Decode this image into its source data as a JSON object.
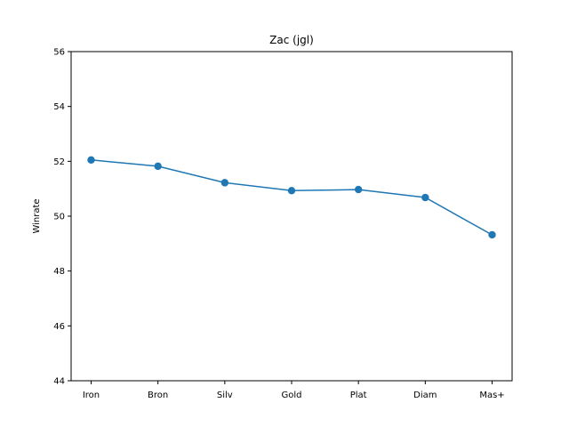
{
  "chart_data": {
    "type": "line",
    "title": "Zac (jgl)",
    "xlabel": "",
    "ylabel": "Winrate",
    "categories": [
      "Iron",
      "Bron",
      "Silv",
      "Gold",
      "Plat",
      "Diam",
      "Mas+"
    ],
    "series": [
      {
        "values": [
          52.05,
          51.82,
          51.22,
          50.93,
          50.97,
          50.68,
          49.32
        ],
        "color": "#1f77b4",
        "marker": "circle"
      }
    ],
    "ylim": [
      44,
      56
    ],
    "yticks": [
      "44",
      "46",
      "48",
      "50",
      "52",
      "54",
      "56"
    ],
    "grid": false,
    "legend": "none"
  }
}
